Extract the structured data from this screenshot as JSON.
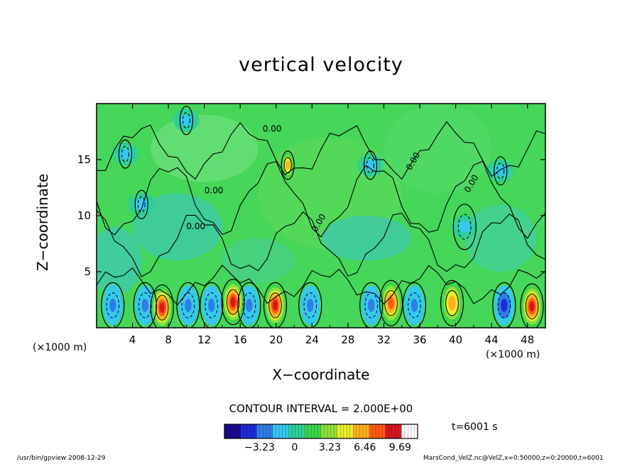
{
  "chart_data": {
    "type": "heatmap",
    "title": "vertical velocity",
    "xlabel": "X−coordinate",
    "ylabel": "Z−coordinate",
    "x_unit_left": "(×1000 m)",
    "x_unit_right": "(×1000 m)",
    "x_ticks": [
      "4",
      "8",
      "12",
      "16",
      "20",
      "24",
      "28",
      "32",
      "36",
      "40",
      "44",
      "48"
    ],
    "y_ticks": [
      "5",
      "10",
      "15"
    ],
    "xlim": [
      0,
      50
    ],
    "ylim": [
      0,
      20
    ],
    "contour_label": "0.00",
    "contour_interval": "CONTOUR INTERVAL = 2.000E+00",
    "colorbar": {
      "labels": [
        "−3.23",
        "0",
        "3.23",
        "6.46",
        "9.69"
      ],
      "range": [
        -6.46,
        11.3
      ],
      "colors": [
        "#1a0a8c",
        "#1e2bd6",
        "#2e7de8",
        "#36c8ee",
        "#2ecf9a",
        "#3ad64a",
        "#8fe03a",
        "#e8ee2a",
        "#ffb01e",
        "#ff5a12",
        "#d8161e",
        "#ffffff"
      ]
    },
    "updrafts": [
      {
        "x": 7.3,
        "z": 1.8,
        "peak": 9.69
      },
      {
        "x": 15.2,
        "z": 2.3,
        "peak": 9.69
      },
      {
        "x": 19.9,
        "z": 2.0,
        "peak": 9.69
      },
      {
        "x": 32.8,
        "z": 2.2,
        "peak": 8.0
      },
      {
        "x": 39.6,
        "z": 2.2,
        "peak": 6.46
      },
      {
        "x": 48.5,
        "z": 1.9,
        "peak": 9.69
      },
      {
        "x": 21.3,
        "z": 14.5,
        "peak": 6.46
      }
    ],
    "downdrafts": [
      {
        "x": 1.8,
        "z": 2.0,
        "min": -3.23
      },
      {
        "x": 5.4,
        "z": 2.0,
        "min": -3.23
      },
      {
        "x": 10.2,
        "z": 2.0,
        "min": -3.23
      },
      {
        "x": 12.8,
        "z": 2.0,
        "min": -3.23
      },
      {
        "x": 17.0,
        "z": 2.0,
        "min": -3.23
      },
      {
        "x": 23.8,
        "z": 2.0,
        "min": -3.23
      },
      {
        "x": 30.6,
        "z": 2.0,
        "min": -3.23
      },
      {
        "x": 35.4,
        "z": 2.0,
        "min": -3.23
      },
      {
        "x": 45.4,
        "z": 2.0,
        "min": -6.46
      },
      {
        "x": 3.2,
        "z": 15.5,
        "min": -1.5
      },
      {
        "x": 10.0,
        "z": 18.5,
        "min": -1.0
      },
      {
        "x": 30.5,
        "z": 14.5,
        "min": -1.0
      },
      {
        "x": 45.0,
        "z": 14.0,
        "min": -1.0
      },
      {
        "x": 41.0,
        "z": 9.0,
        "min": -1.0
      },
      {
        "x": 5.0,
        "z": 11.0,
        "min": -1.0
      }
    ]
  },
  "annotations": {
    "time": "t=6001 s",
    "footer_left": "/usr/bin/gpview   2008-12-29",
    "footer_right": "MarsCond_VelZ.nc@VelZ,x=0:50000,z=0:20000,t=6001"
  }
}
